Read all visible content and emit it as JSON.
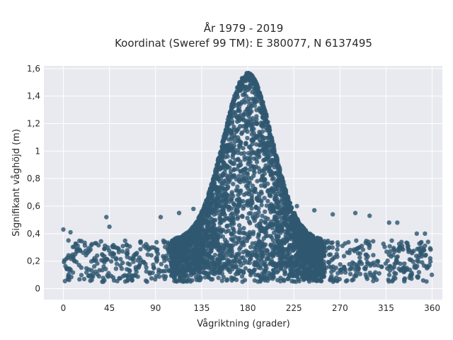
{
  "chart_data": {
    "type": "scatter",
    "title": [
      "År 1979 - 2019",
      "Koordinat (Sweref 99 TM): E 380077, N 6137495"
    ],
    "xlabel": "Vågriktning (grader)",
    "ylabel": "Signifikant våghöjd (m)",
    "xlim": [
      -19,
      370
    ],
    "ylim": [
      -0.08,
      1.62
    ],
    "x_ticks": [
      0,
      45,
      90,
      135,
      180,
      225,
      270,
      315,
      360
    ],
    "x_tick_labels": [
      "0",
      "45",
      "90",
      "135",
      "180",
      "225",
      "270",
      "315",
      "360"
    ],
    "y_ticks": [
      0,
      0.2,
      0.4,
      0.6,
      0.8,
      1,
      1.2,
      1.4,
      1.6
    ],
    "y_tick_labels": [
      "0",
      "0,2",
      "0,4",
      "0,6",
      "0,8",
      "1",
      "1,2",
      "1,4",
      "1,6"
    ],
    "grid": true,
    "marker_color": "#2f5870",
    "plot_background": "#e9e9f0",
    "x_range": [
      0,
      360
    ],
    "peak_direction": 180,
    "peak_height": 1.57,
    "baseline_height_range": [
      0.05,
      0.35
    ],
    "outliers": [
      {
        "x": 0,
        "y": 0.43
      },
      {
        "x": 7,
        "y": 0.41
      },
      {
        "x": 5,
        "y": 0.35
      },
      {
        "x": 42,
        "y": 0.52
      },
      {
        "x": 45,
        "y": 0.45
      },
      {
        "x": 32,
        "y": 0.33
      },
      {
        "x": 95,
        "y": 0.52
      },
      {
        "x": 113,
        "y": 0.55
      },
      {
        "x": 127,
        "y": 0.58
      },
      {
        "x": 228,
        "y": 0.6
      },
      {
        "x": 245,
        "y": 0.57
      },
      {
        "x": 263,
        "y": 0.54
      },
      {
        "x": 285,
        "y": 0.55
      },
      {
        "x": 299,
        "y": 0.53
      },
      {
        "x": 318,
        "y": 0.48
      },
      {
        "x": 326,
        "y": 0.48
      },
      {
        "x": 345,
        "y": 0.4
      },
      {
        "x": 353,
        "y": 0.4
      }
    ]
  }
}
